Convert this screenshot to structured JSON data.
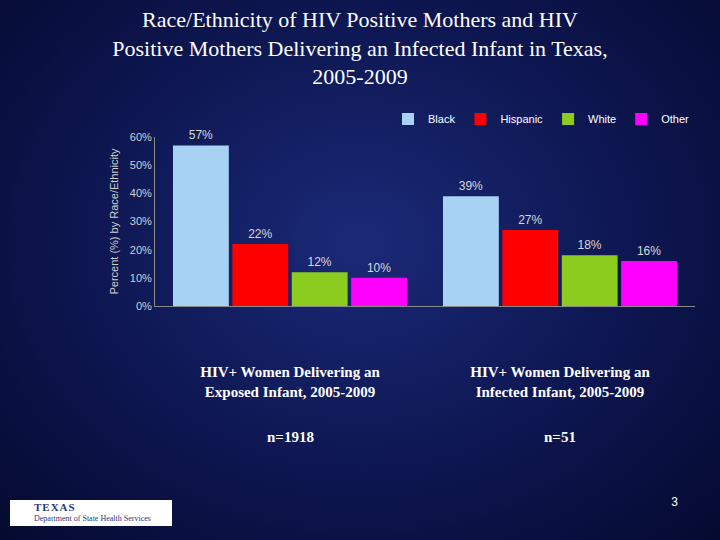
{
  "chart_data": {
    "type": "bar",
    "title": "Race/Ethnicity of HIV Positive Mothers and HIV\nPositive Mothers Delivering an Infected Infant in Texas,\n2005-2009",
    "y_label": "Percent (%) by Race/Ethnicity",
    "categories": [
      "HIV+ Women Delivering an Exposed Infant, 2005-2009",
      "HIV+ Women Delivering an Infected Infant, 2005-2009"
    ],
    "group_notes": [
      "n=1918",
      "n=51"
    ],
    "series": [
      {
        "name": "Black",
        "color": "#a8d2f4",
        "values": [
          57,
          39
        ],
        "value_labels": [
          "57%",
          "39%"
        ]
      },
      {
        "name": "Hispanic",
        "color": "#ff0000",
        "values": [
          22,
          27
        ],
        "value_labels": [
          "22%",
          "27%"
        ]
      },
      {
        "name": "White",
        "color": "#8ccc1e",
        "values": [
          12,
          18
        ],
        "value_labels": [
          "12%",
          "18%"
        ]
      },
      {
        "name": "Other",
        "color": "#ff00ff",
        "values": [
          10,
          16
        ],
        "value_labels": [
          "10%",
          "16%"
        ]
      }
    ],
    "ylim": [
      0,
      60
    ],
    "yticks": [
      {
        "value": 0,
        "label": "0%"
      },
      {
        "value": 10,
        "label": "10%"
      },
      {
        "value": 20,
        "label": "20%"
      },
      {
        "value": 30,
        "label": "30%"
      },
      {
        "value": 40,
        "label": "40%"
      },
      {
        "value": 50,
        "label": "50%"
      },
      {
        "value": 60,
        "label": "60%"
      }
    ],
    "grid": false,
    "legend": "top-right",
    "data_labels": true,
    "footer": "3",
    "logo_text": [
      "TEXAS",
      "Department of State Health Services"
    ]
  }
}
